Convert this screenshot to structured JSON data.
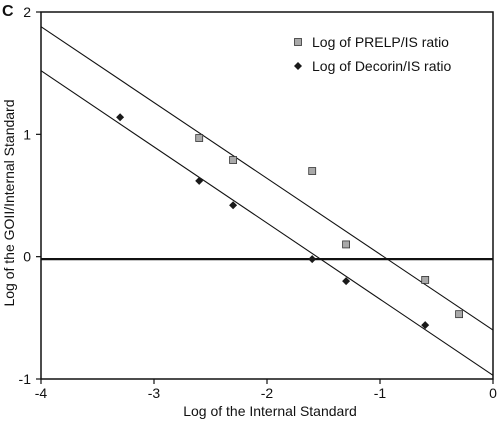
{
  "chart_data": {
    "type": "scatter",
    "panel_label": "C",
    "title": "",
    "xlabel": "Log of the Internal Standard",
    "ylabel": "Log of the GOII/Internal Standard",
    "xlim": [
      -4,
      0
    ],
    "ylim": [
      -1,
      2
    ],
    "xticks": [
      -4,
      -3,
      -2,
      -1,
      0
    ],
    "yticks": [
      -1,
      0,
      1,
      2
    ],
    "grid": false,
    "legend_position": "top-right",
    "series": [
      {
        "name": "Log of PRELP/IS ratio",
        "marker": "square",
        "color": "#a9a9a9",
        "points": [
          {
            "x": -2.6,
            "y": 0.97
          },
          {
            "x": -2.3,
            "y": 0.79
          },
          {
            "x": -1.6,
            "y": 0.7
          },
          {
            "x": -1.3,
            "y": 0.1
          },
          {
            "x": -0.6,
            "y": -0.19
          },
          {
            "x": -0.3,
            "y": -0.47
          }
        ],
        "trendline": {
          "x": [
            -4,
            0
          ],
          "y": [
            1.88,
            -0.6
          ]
        }
      },
      {
        "name": "Log of Decorin/IS ratio",
        "marker": "diamond",
        "color": "#1a1a1a",
        "points": [
          {
            "x": -3.3,
            "y": 1.14
          },
          {
            "x": -2.6,
            "y": 0.62
          },
          {
            "x": -2.3,
            "y": 0.42
          },
          {
            "x": -1.6,
            "y": -0.02
          },
          {
            "x": -1.3,
            "y": -0.2
          },
          {
            "x": -0.6,
            "y": -0.56
          }
        ],
        "trendline": {
          "x": [
            -4,
            0
          ],
          "y": [
            1.52,
            -0.97
          ]
        }
      }
    ],
    "reference_line": {
      "y": -0.02
    }
  }
}
